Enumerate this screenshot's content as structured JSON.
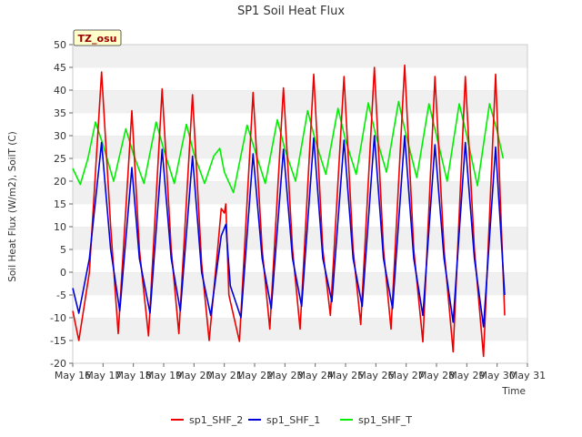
{
  "chart_data": {
    "type": "line",
    "title": "SP1 Soil Heat Flux",
    "xlabel": "Time",
    "ylabel": "Soil Heat Flux (W/m2), SoilT (C)",
    "ylim": [
      -20,
      50
    ],
    "yticks": [
      -20,
      -15,
      -10,
      -5,
      0,
      5,
      10,
      15,
      20,
      25,
      30,
      35,
      40,
      45,
      50
    ],
    "xlim": [
      16,
      31
    ],
    "xticks": [
      16,
      17,
      18,
      19,
      20,
      21,
      22,
      23,
      24,
      25,
      26,
      27,
      28,
      29,
      30,
      31
    ],
    "xtick_labels": [
      "May 16",
      "May 17",
      "May 18",
      "May 19",
      "May 20",
      "May 21",
      "May 22",
      "May 23",
      "May 24",
      "May 25",
      "May 26",
      "May 27",
      "May 28",
      "May 29",
      "May 30",
      "May 31"
    ],
    "grid": "horizontal bands",
    "legend_position": "bottom-center",
    "annotation": "TZ_osu",
    "series": [
      {
        "name": "sp1_SHF_2",
        "color": "#ee0000",
        "peaks": [
          [
            16.0,
            -8.5
          ],
          [
            16.2,
            -15.0
          ],
          [
            16.55,
            0
          ],
          [
            16.95,
            44.0
          ],
          [
            17.25,
            10
          ],
          [
            17.5,
            -13.5
          ],
          [
            17.95,
            35.5
          ],
          [
            18.2,
            5
          ],
          [
            18.5,
            -14.0
          ],
          [
            18.95,
            40.3
          ],
          [
            19.25,
            5
          ],
          [
            19.5,
            -13.5
          ],
          [
            19.95,
            39.0
          ],
          [
            20.25,
            2
          ],
          [
            20.5,
            -15.0
          ],
          [
            20.8,
            6.5
          ],
          [
            20.9,
            14.0
          ],
          [
            21.0,
            13.0
          ],
          [
            21.05,
            15.0
          ],
          [
            21.15,
            -5
          ],
          [
            21.5,
            -15.2
          ],
          [
            21.95,
            39.5
          ],
          [
            22.25,
            5
          ],
          [
            22.5,
            -12.5
          ],
          [
            22.95,
            40.5
          ],
          [
            23.25,
            5
          ],
          [
            23.5,
            -12.5
          ],
          [
            23.95,
            43.5
          ],
          [
            24.25,
            5
          ],
          [
            24.5,
            -9.5
          ],
          [
            24.95,
            43.0
          ],
          [
            25.25,
            5
          ],
          [
            25.5,
            -11.5
          ],
          [
            25.95,
            45.0
          ],
          [
            26.25,
            5
          ],
          [
            26.5,
            -12.5
          ],
          [
            26.95,
            45.5
          ],
          [
            27.25,
            5
          ],
          [
            27.55,
            -15.3
          ],
          [
            27.95,
            43.0
          ],
          [
            28.25,
            5
          ],
          [
            28.55,
            -17.5
          ],
          [
            28.95,
            43.0
          ],
          [
            29.25,
            5
          ],
          [
            29.55,
            -18.5
          ],
          [
            29.95,
            43.5
          ],
          [
            30.25,
            -9.5
          ]
        ]
      },
      {
        "name": "sp1_SHF_1",
        "color": "#0000dd",
        "peaks": [
          [
            16.0,
            -3.5
          ],
          [
            16.2,
            -9.0
          ],
          [
            16.55,
            3
          ],
          [
            16.95,
            28.5
          ],
          [
            17.25,
            5
          ],
          [
            17.55,
            -8.5
          ],
          [
            17.95,
            23.0
          ],
          [
            18.2,
            3
          ],
          [
            18.55,
            -9.0
          ],
          [
            18.95,
            27.0
          ],
          [
            19.25,
            3
          ],
          [
            19.55,
            -8.5
          ],
          [
            19.95,
            25.5
          ],
          [
            20.25,
            0
          ],
          [
            20.55,
            -9.5
          ],
          [
            20.9,
            8
          ],
          [
            21.05,
            10.5
          ],
          [
            21.2,
            -3
          ],
          [
            21.55,
            -10.0
          ],
          [
            21.95,
            26.0
          ],
          [
            22.25,
            3
          ],
          [
            22.55,
            -8.0
          ],
          [
            22.95,
            27.0
          ],
          [
            23.25,
            3
          ],
          [
            23.55,
            -7.5
          ],
          [
            23.95,
            29.5
          ],
          [
            24.25,
            3
          ],
          [
            24.55,
            -6.5
          ],
          [
            24.95,
            29.0
          ],
          [
            25.25,
            3
          ],
          [
            25.55,
            -7.5
          ],
          [
            25.95,
            30.0
          ],
          [
            26.25,
            3
          ],
          [
            26.55,
            -8.0
          ],
          [
            26.95,
            30.0
          ],
          [
            27.25,
            3
          ],
          [
            27.55,
            -9.5
          ],
          [
            27.95,
            28.0
          ],
          [
            28.25,
            3
          ],
          [
            28.55,
            -11.0
          ],
          [
            28.95,
            28.5
          ],
          [
            29.25,
            3
          ],
          [
            29.55,
            -12.0
          ],
          [
            29.95,
            27.5
          ],
          [
            30.25,
            -5.0
          ]
        ]
      },
      {
        "name": "sp1_SHF_T",
        "color": "#00ee00",
        "peaks": [
          [
            16.0,
            22.8
          ],
          [
            16.25,
            19.3
          ],
          [
            16.5,
            25
          ],
          [
            16.75,
            33.0
          ],
          [
            17.0,
            28
          ],
          [
            17.35,
            20.0
          ],
          [
            17.75,
            31.5
          ],
          [
            18.0,
            26
          ],
          [
            18.35,
            19.5
          ],
          [
            18.75,
            33.0
          ],
          [
            19.0,
            27
          ],
          [
            19.35,
            19.5
          ],
          [
            19.75,
            32.5
          ],
          [
            20.0,
            26
          ],
          [
            20.35,
            19.5
          ],
          [
            20.65,
            25.5
          ],
          [
            20.85,
            27.2
          ],
          [
            21.0,
            22
          ],
          [
            21.3,
            17.5
          ],
          [
            21.75,
            32.3
          ],
          [
            22.0,
            27
          ],
          [
            22.35,
            19.5
          ],
          [
            22.75,
            33.5
          ],
          [
            23.0,
            27
          ],
          [
            23.35,
            20.0
          ],
          [
            23.75,
            35.5
          ],
          [
            24.0,
            29
          ],
          [
            24.35,
            21.5
          ],
          [
            24.75,
            36.0
          ],
          [
            25.0,
            29
          ],
          [
            25.35,
            21.5
          ],
          [
            25.75,
            37.2
          ],
          [
            26.0,
            30
          ],
          [
            26.35,
            22.0
          ],
          [
            26.75,
            37.5
          ],
          [
            27.0,
            30
          ],
          [
            27.35,
            20.8
          ],
          [
            27.75,
            37.0
          ],
          [
            28.0,
            30
          ],
          [
            28.35,
            20.0
          ],
          [
            28.75,
            37.0
          ],
          [
            29.0,
            30
          ],
          [
            29.35,
            19.0
          ],
          [
            29.75,
            37.0
          ],
          [
            30.0,
            31
          ],
          [
            30.2,
            25.0
          ]
        ]
      }
    ]
  }
}
